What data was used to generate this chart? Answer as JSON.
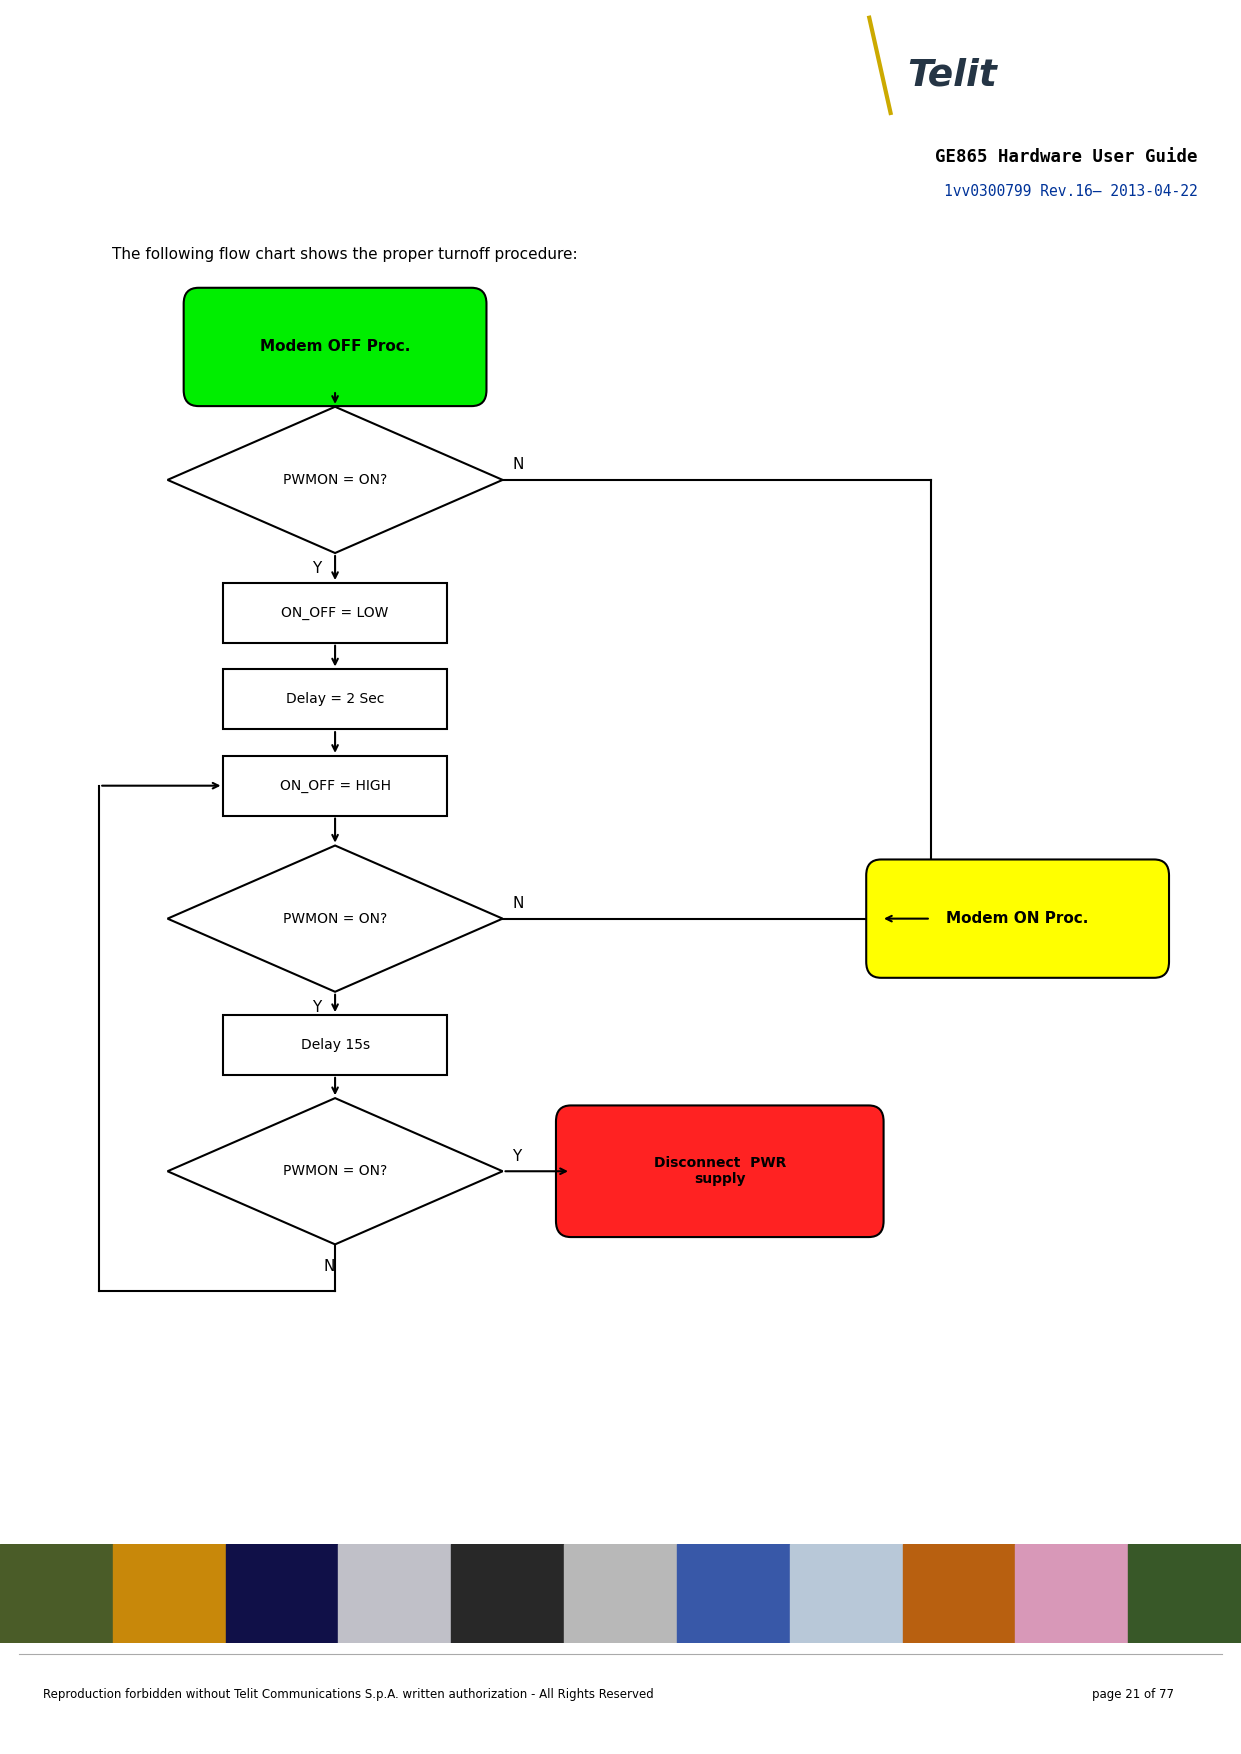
{
  "title": "GE865 Hardware User Guide",
  "subtitle": "1vv0300799 Rev.16– 2013-04-22",
  "intro_text": "The following flow chart shows the proper turnoff procedure:",
  "footer_text": "Reproduction forbidden without Telit Communications S.p.A. written authorization - All Rights Reserved",
  "page_text": "page 21 of 77",
  "header_dark_color": "#253545",
  "header_gray_color": "#b8bec5",
  "bg_color": "#ffffff",
  "fig_width": 12.41,
  "fig_height": 17.54,
  "start_label": "Modem OFF Proc.",
  "start_color": "#00ee00",
  "d1_label": "PWMON = ON?",
  "r1_label": "ON_OFF = LOW",
  "r2_label": "Delay = 2 Sec",
  "r3_label": "ON_OFF = HIGH",
  "d2_label": "PWMON = ON?",
  "r4_label": "Delay 15s",
  "d3_label": "PWMON = ON?",
  "modem_on_label": "Modem ON Proc.",
  "modem_on_color": "#ffff00",
  "disconnect_label": "Disconnect  PWR\nsupply",
  "disconnect_color": "#ff2222"
}
